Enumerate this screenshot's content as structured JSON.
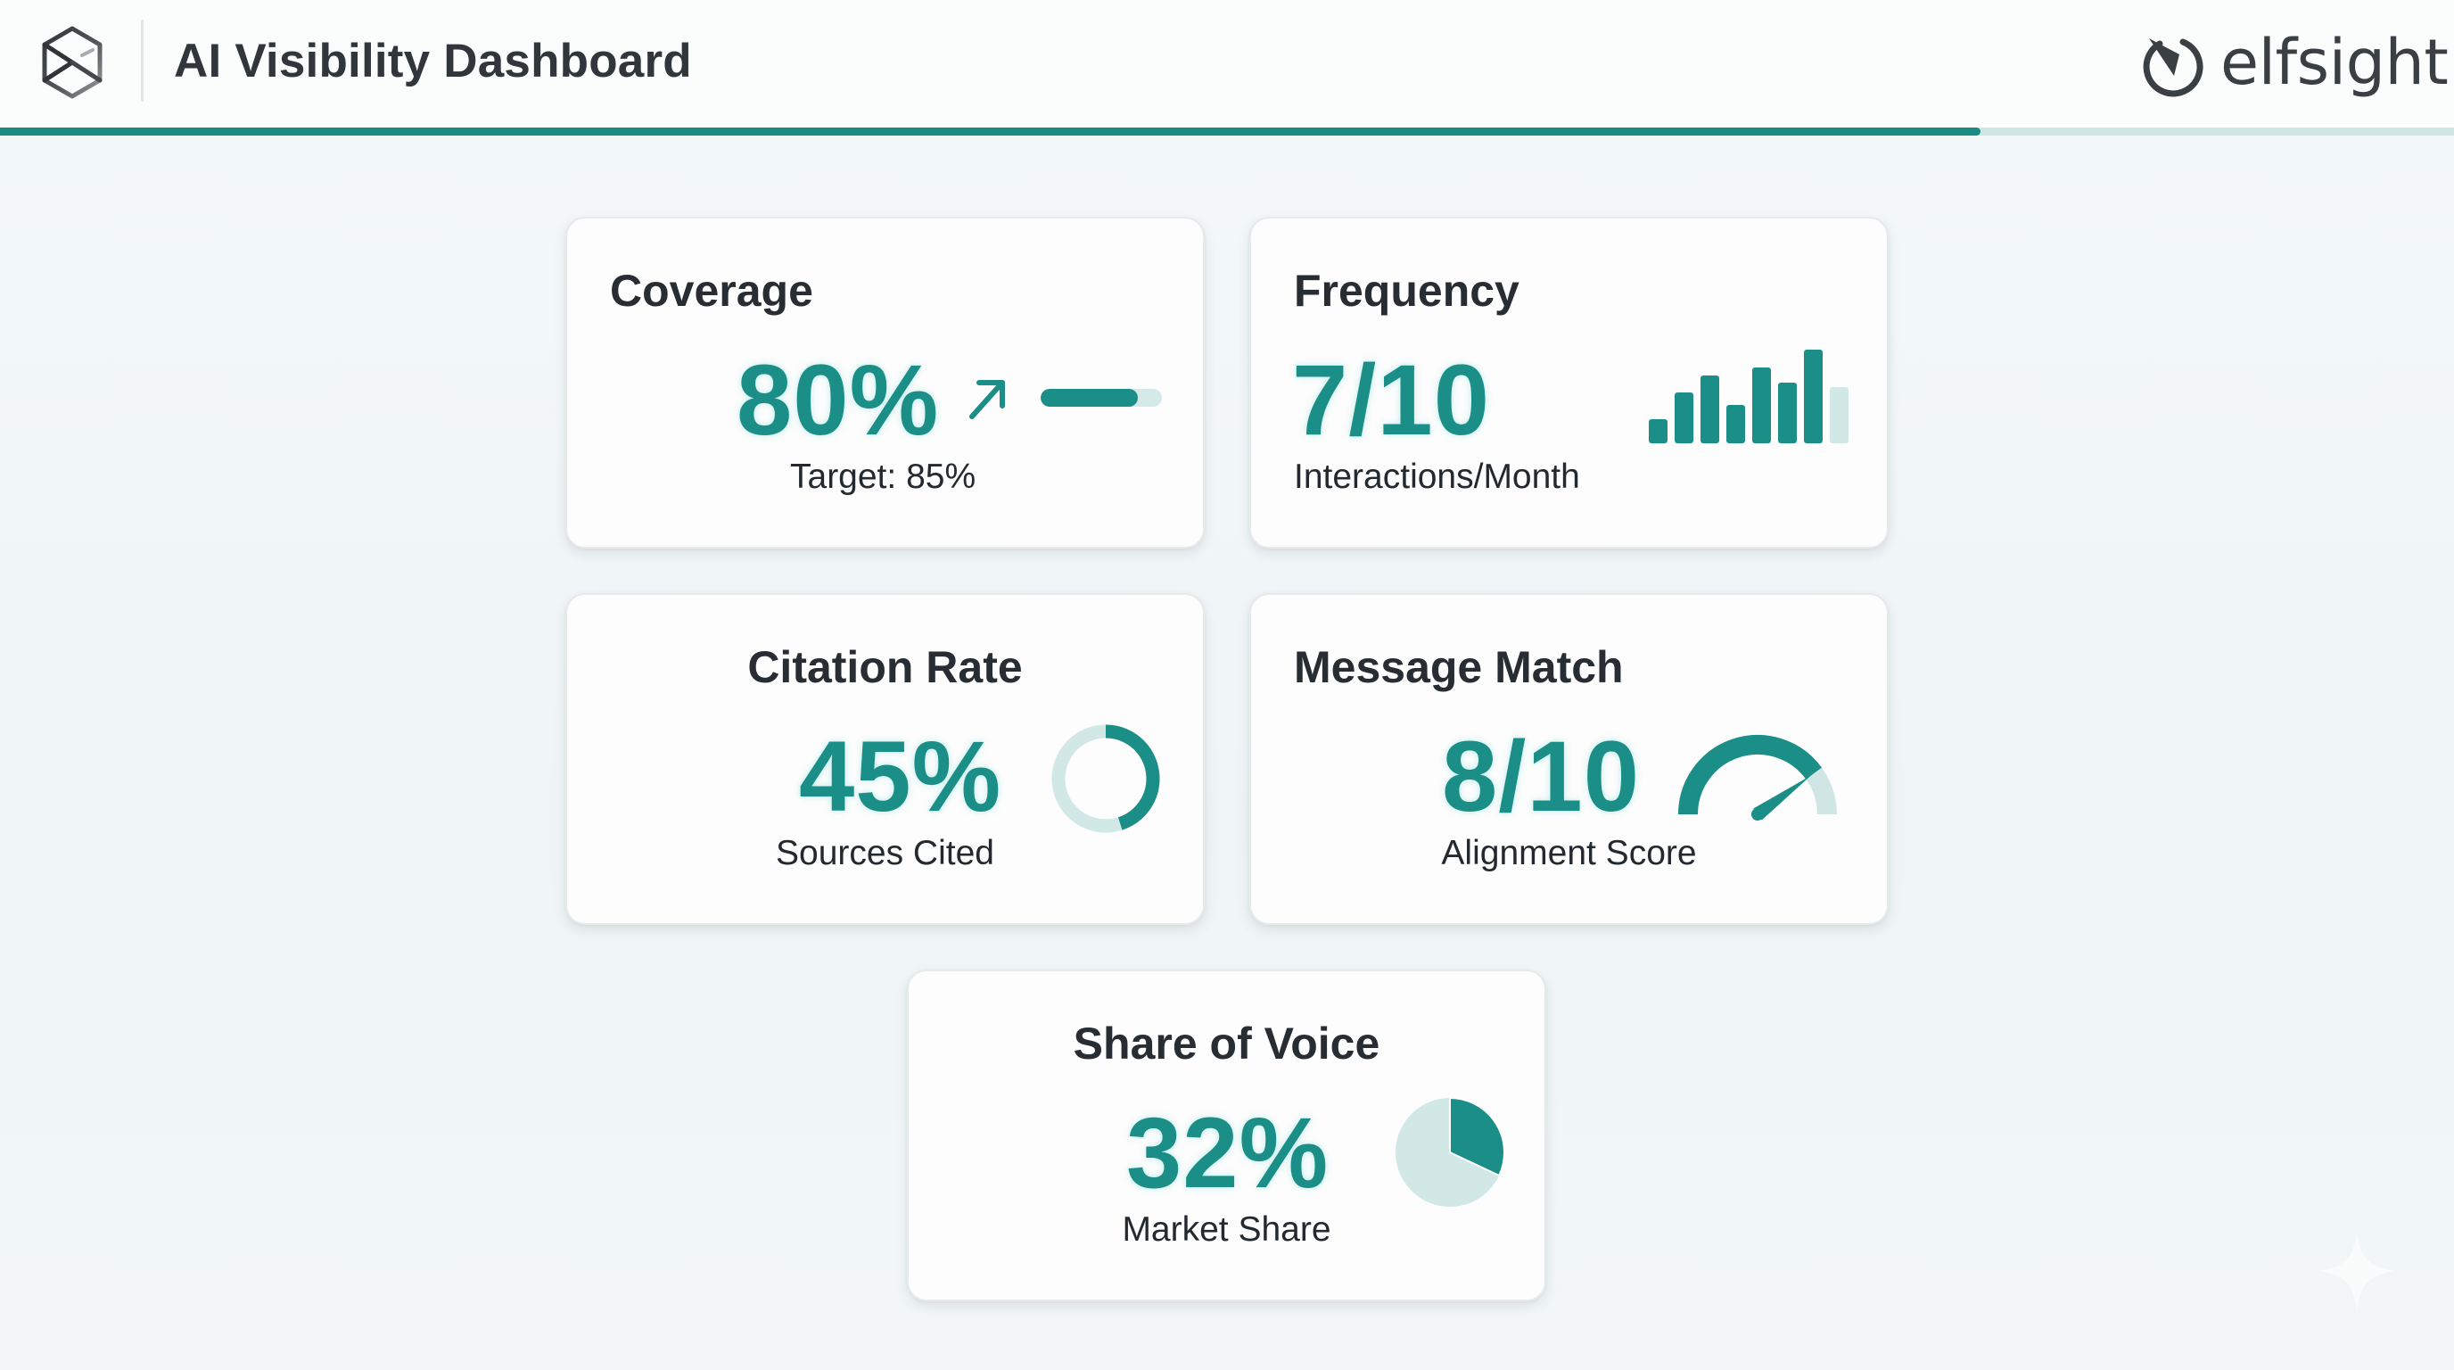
{
  "header": {
    "title": "AI Visibility Dashboard",
    "brand_icon": "hexagon-cube-logo-icon",
    "partner": {
      "icon": "elfsight-logo-icon",
      "name": "elfsight"
    },
    "progress_percent": 80.7
  },
  "colors": {
    "accent": "#1b8f87",
    "accent_light": "#cfe6e5",
    "text": "#272d33",
    "background": "#f1f6f7",
    "card": "#fdfdfd"
  },
  "cards": {
    "coverage": {
      "title": "Coverage",
      "value": "80%",
      "caption": "Target: 85%",
      "trend_icon": "arrow-up-right-icon",
      "bar_fill_percent": 80
    },
    "frequency": {
      "title": "Frequency",
      "value": "7/10",
      "caption": "Interactions/Month",
      "bars": [
        27,
        57,
        76,
        43,
        85,
        68,
        105,
        63
      ],
      "highlight_last_light": true
    },
    "citation": {
      "title": "Citation Rate",
      "value": "45%",
      "caption": "Sources Cited",
      "donut_percent": 45
    },
    "message": {
      "title": "Message Match",
      "value": "8/10",
      "caption": "Alignment Score",
      "gauge_percent": 80
    },
    "share": {
      "title": "Share of Voice",
      "value": "32%",
      "caption": "Market Share",
      "pie_percent": 32
    }
  },
  "decor": {
    "sparkle_icon": "sparkle-icon"
  }
}
